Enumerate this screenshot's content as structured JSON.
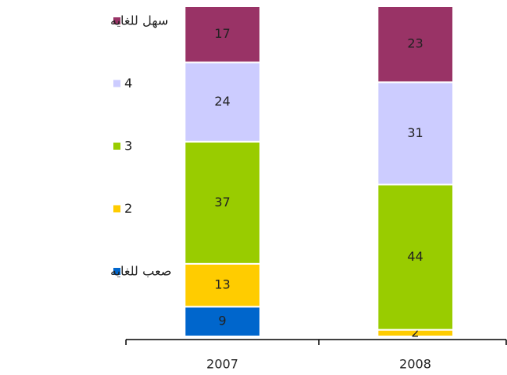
{
  "chart_data": {
    "type": "bar",
    "stacked": true,
    "categories": [
      "2007",
      "2008"
    ],
    "series": [
      {
        "name": "صعب للغايه",
        "color": "#0066cc",
        "values": [
          9,
          0
        ]
      },
      {
        "name": "2",
        "color": "#ffcc00",
        "values": [
          13,
          2
        ]
      },
      {
        "name": "3",
        "color": "#99cc00",
        "values": [
          37,
          44
        ]
      },
      {
        "name": "4",
        "color": "#ccccff",
        "values": [
          24,
          31
        ]
      },
      {
        "name": "سهل للغايه",
        "color": "#993366",
        "values": [
          17,
          23
        ]
      }
    ],
    "ylim": [
      0,
      100
    ],
    "legend": "left"
  }
}
